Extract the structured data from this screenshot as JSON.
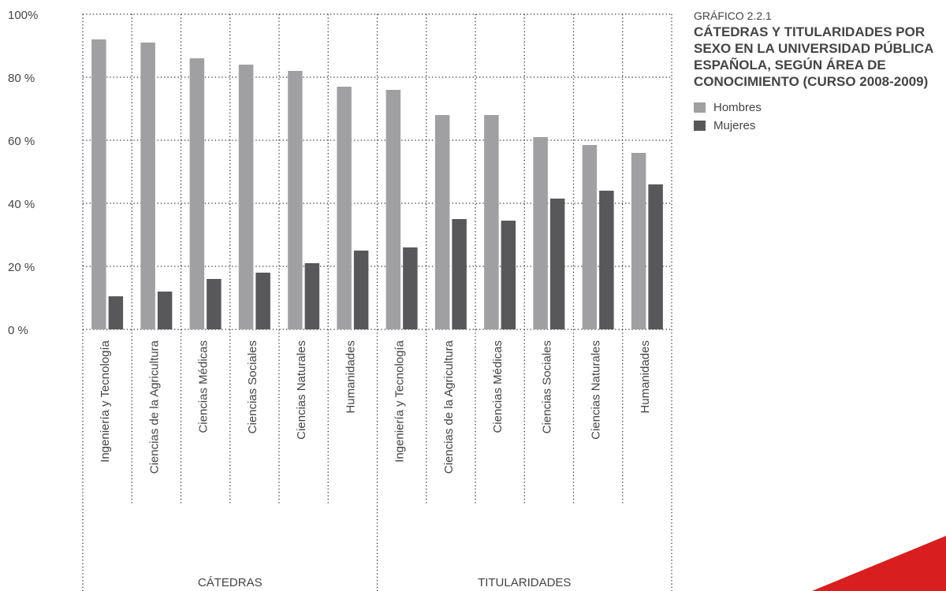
{
  "chart_data": {
    "type": "bar",
    "kicker": "GRÁFICO 2.2.1",
    "title": "CÁTEDRAS Y TITULARIDADES POR SEXO EN LA UNIVERSIDAD PÚBLICA ESPAÑOLA, SEGÚN ÁREA DE CONOCIMIENTO (CURSO 2008-2009)",
    "categories": [
      "Ingeniería y Tecnología",
      "Ciencias de la Agricultura",
      "Ciencias Médicas",
      "Ciencias Sociales",
      "Ciencias Naturales",
      "Humanidades",
      "Ingeniería y Tecnología",
      "Ciencias de la Agricultura",
      "Ciencias Médicas",
      "Ciencias Sociales",
      "Ciencias Naturales",
      "Humanidades"
    ],
    "groups": [
      "CÁTEDRAS",
      "TITULARIDADES"
    ],
    "series": [
      {
        "name": "Hombres",
        "color": "#a0a0a2",
        "values": [
          92,
          91,
          86,
          84,
          82,
          77,
          76,
          68,
          68,
          61,
          58.5,
          56
        ]
      },
      {
        "name": "Mujeres",
        "color": "#58585a",
        "values": [
          10.5,
          12,
          16,
          18,
          21,
          25,
          26,
          35,
          34.5,
          41.5,
          44,
          46
        ]
      }
    ],
    "ylim": [
      0,
      100
    ],
    "yticks": [
      {
        "value": 0,
        "label": "0 %"
      },
      {
        "value": 20,
        "label": "20 %"
      },
      {
        "value": 40,
        "label": "40 %"
      },
      {
        "value": 60,
        "label": "60 %"
      },
      {
        "value": 80,
        "label": "80 %"
      },
      {
        "value": 100,
        "label": "100%"
      }
    ],
    "grid": true
  }
}
